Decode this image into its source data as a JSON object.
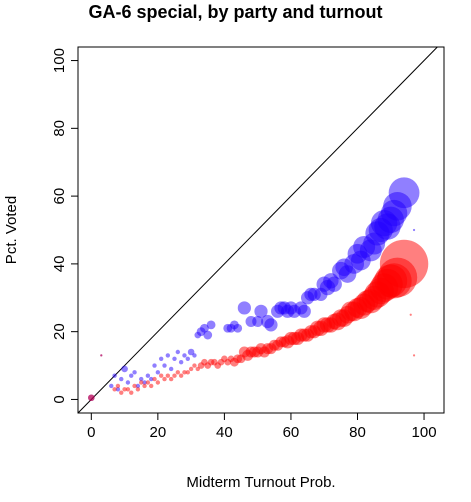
{
  "chart_data": {
    "type": "scatter",
    "title": "GA-6 special, by party and turnout",
    "xlabel": "Midterm Turnout Prob.",
    "ylabel": "Pct. Voted",
    "xlim": [
      -4,
      106
    ],
    "ylim": [
      -4,
      104
    ],
    "xticks": [
      "0",
      "20",
      "40",
      "60",
      "80",
      "100"
    ],
    "yticks": [
      "0",
      "20",
      "40",
      "60",
      "80",
      "100"
    ],
    "reference_line": "y = x",
    "grid": false,
    "legend": "none",
    "series": [
      {
        "color": "#2200ff",
        "opacity": 0.5,
        "points": [
          {
            "x": 0,
            "y": 0.5,
            "s": 1.5
          },
          {
            "x": 3,
            "y": 13,
            "s": 0.5
          },
          {
            "x": 6,
            "y": 4,
            "s": 1
          },
          {
            "x": 7,
            "y": 7,
            "s": 1
          },
          {
            "x": 8,
            "y": 3,
            "s": 1
          },
          {
            "x": 9,
            "y": 6,
            "s": 1
          },
          {
            "x": 10,
            "y": 9,
            "s": 1.5
          },
          {
            "x": 11,
            "y": 5,
            "s": 1
          },
          {
            "x": 12,
            "y": 7,
            "s": 1
          },
          {
            "x": 13,
            "y": 8,
            "s": 1
          },
          {
            "x": 14,
            "y": 4,
            "s": 1
          },
          {
            "x": 15,
            "y": 6,
            "s": 1
          },
          {
            "x": 16,
            "y": 5,
            "s": 1
          },
          {
            "x": 17,
            "y": 7,
            "s": 1
          },
          {
            "x": 18,
            "y": 6,
            "s": 1
          },
          {
            "x": 19,
            "y": 10,
            "s": 1
          },
          {
            "x": 20,
            "y": 8,
            "s": 1
          },
          {
            "x": 21,
            "y": 12,
            "s": 1
          },
          {
            "x": 22,
            "y": 10,
            "s": 1
          },
          {
            "x": 23,
            "y": 13,
            "s": 1
          },
          {
            "x": 24,
            "y": 9,
            "s": 1
          },
          {
            "x": 25,
            "y": 12,
            "s": 1
          },
          {
            "x": 26,
            "y": 14,
            "s": 1
          },
          {
            "x": 27,
            "y": 11,
            "s": 1
          },
          {
            "x": 28,
            "y": 13,
            "s": 1
          },
          {
            "x": 29,
            "y": 12,
            "s": 1
          },
          {
            "x": 30,
            "y": 14,
            "s": 1.5
          },
          {
            "x": 31,
            "y": 13,
            "s": 1
          },
          {
            "x": 32,
            "y": 19,
            "s": 1.5
          },
          {
            "x": 33,
            "y": 20,
            "s": 2
          },
          {
            "x": 34,
            "y": 21,
            "s": 2
          },
          {
            "x": 35,
            "y": 19,
            "s": 2
          },
          {
            "x": 36,
            "y": 22,
            "s": 2
          },
          {
            "x": 41,
            "y": 21,
            "s": 2
          },
          {
            "x": 42,
            "y": 21,
            "s": 2
          },
          {
            "x": 43,
            "y": 22,
            "s": 2
          },
          {
            "x": 44,
            "y": 21,
            "s": 2
          },
          {
            "x": 46,
            "y": 27,
            "s": 3
          },
          {
            "x": 48,
            "y": 23,
            "s": 2.5
          },
          {
            "x": 50,
            "y": 23,
            "s": 2.5
          },
          {
            "x": 51,
            "y": 26,
            "s": 3
          },
          {
            "x": 53,
            "y": 23,
            "s": 3
          },
          {
            "x": 54,
            "y": 22,
            "s": 3
          },
          {
            "x": 56,
            "y": 26,
            "s": 3
          },
          {
            "x": 57,
            "y": 27,
            "s": 3
          },
          {
            "x": 58,
            "y": 27,
            "s": 3
          },
          {
            "x": 59,
            "y": 26,
            "s": 3
          },
          {
            "x": 60,
            "y": 27,
            "s": 3
          },
          {
            "x": 61,
            "y": 26,
            "s": 3
          },
          {
            "x": 63,
            "y": 27,
            "s": 3
          },
          {
            "x": 64,
            "y": 26,
            "s": 3
          },
          {
            "x": 65,
            "y": 30,
            "s": 3
          },
          {
            "x": 66,
            "y": 31,
            "s": 3
          },
          {
            "x": 67,
            "y": 31,
            "s": 3
          },
          {
            "x": 69,
            "y": 31,
            "s": 3
          },
          {
            "x": 70,
            "y": 34,
            "s": 3.5
          },
          {
            "x": 71,
            "y": 33,
            "s": 3.5
          },
          {
            "x": 72,
            "y": 35,
            "s": 3.5
          },
          {
            "x": 73,
            "y": 34,
            "s": 3.5
          },
          {
            "x": 75,
            "y": 38,
            "s": 4
          },
          {
            "x": 76,
            "y": 39,
            "s": 4
          },
          {
            "x": 77,
            "y": 37,
            "s": 4
          },
          {
            "x": 79,
            "y": 40,
            "s": 4.5
          },
          {
            "x": 80,
            "y": 43,
            "s": 4.5
          },
          {
            "x": 81,
            "y": 41,
            "s": 4.5
          },
          {
            "x": 82,
            "y": 45,
            "s": 5
          },
          {
            "x": 84,
            "y": 44,
            "s": 5
          },
          {
            "x": 85,
            "y": 46,
            "s": 5
          },
          {
            "x": 86,
            "y": 49,
            "s": 5.5
          },
          {
            "x": 87,
            "y": 50,
            "s": 5.5
          },
          {
            "x": 88,
            "y": 52,
            "s": 6
          },
          {
            "x": 89,
            "y": 51,
            "s": 6
          },
          {
            "x": 90,
            "y": 53,
            "s": 6
          },
          {
            "x": 91,
            "y": 55,
            "s": 6
          },
          {
            "x": 92,
            "y": 57,
            "s": 6.5
          },
          {
            "x": 94,
            "y": 61,
            "s": 7
          },
          {
            "x": 97,
            "y": 50,
            "s": 0.5
          }
        ]
      },
      {
        "color": "#ff0000",
        "opacity": 0.5,
        "points": [
          {
            "x": 0,
            "y": 0.5,
            "s": 1.5
          },
          {
            "x": 3,
            "y": 13,
            "s": 0.5
          },
          {
            "x": 7,
            "y": 3,
            "s": 1
          },
          {
            "x": 8,
            "y": 4,
            "s": 1
          },
          {
            "x": 9,
            "y": 2,
            "s": 1
          },
          {
            "x": 10,
            "y": 3,
            "s": 1
          },
          {
            "x": 11,
            "y": 3,
            "s": 1
          },
          {
            "x": 12,
            "y": 2,
            "s": 1
          },
          {
            "x": 13,
            "y": 4,
            "s": 1
          },
          {
            "x": 14,
            "y": 3,
            "s": 1
          },
          {
            "x": 15,
            "y": 5,
            "s": 1
          },
          {
            "x": 16,
            "y": 4,
            "s": 1
          },
          {
            "x": 17,
            "y": 5,
            "s": 1
          },
          {
            "x": 18,
            "y": 4,
            "s": 1
          },
          {
            "x": 19,
            "y": 6,
            "s": 1
          },
          {
            "x": 20,
            "y": 5,
            "s": 1
          },
          {
            "x": 21,
            "y": 7,
            "s": 1
          },
          {
            "x": 22,
            "y": 6,
            "s": 1
          },
          {
            "x": 23,
            "y": 7,
            "s": 1
          },
          {
            "x": 24,
            "y": 6,
            "s": 1
          },
          {
            "x": 25,
            "y": 7,
            "s": 1
          },
          {
            "x": 26,
            "y": 8,
            "s": 1
          },
          {
            "x": 27,
            "y": 7,
            "s": 1
          },
          {
            "x": 28,
            "y": 8,
            "s": 1
          },
          {
            "x": 29,
            "y": 8,
            "s": 1
          },
          {
            "x": 30,
            "y": 9,
            "s": 1
          },
          {
            "x": 31,
            "y": 10,
            "s": 1
          },
          {
            "x": 32,
            "y": 9,
            "s": 1
          },
          {
            "x": 33,
            "y": 10,
            "s": 1.5
          },
          {
            "x": 34,
            "y": 11,
            "s": 1.5
          },
          {
            "x": 35,
            "y": 10,
            "s": 1.5
          },
          {
            "x": 36,
            "y": 11,
            "s": 1.5
          },
          {
            "x": 37,
            "y": 11,
            "s": 1.5
          },
          {
            "x": 38,
            "y": 10,
            "s": 1.5
          },
          {
            "x": 39,
            "y": 11,
            "s": 1.5
          },
          {
            "x": 40,
            "y": 12,
            "s": 1.5
          },
          {
            "x": 41,
            "y": 11,
            "s": 1.5
          },
          {
            "x": 42,
            "y": 12,
            "s": 1.5
          },
          {
            "x": 43,
            "y": 11,
            "s": 2
          },
          {
            "x": 44,
            "y": 12,
            "s": 2
          },
          {
            "x": 45,
            "y": 12,
            "s": 2
          },
          {
            "x": 46,
            "y": 14,
            "s": 2.5
          },
          {
            "x": 47,
            "y": 13,
            "s": 2.5
          },
          {
            "x": 48,
            "y": 14,
            "s": 2.5
          },
          {
            "x": 49,
            "y": 14,
            "s": 2.5
          },
          {
            "x": 50,
            "y": 14,
            "s": 2.5
          },
          {
            "x": 51,
            "y": 15,
            "s": 2.5
          },
          {
            "x": 52,
            "y": 14,
            "s": 2.5
          },
          {
            "x": 53,
            "y": 15,
            "s": 2.5
          },
          {
            "x": 54,
            "y": 15,
            "s": 2.5
          },
          {
            "x": 55,
            "y": 16,
            "s": 2.5
          },
          {
            "x": 56,
            "y": 16,
            "s": 2.5
          },
          {
            "x": 57,
            "y": 17,
            "s": 2.5
          },
          {
            "x": 58,
            "y": 17,
            "s": 2.5
          },
          {
            "x": 59,
            "y": 17,
            "s": 3
          },
          {
            "x": 60,
            "y": 18,
            "s": 3
          },
          {
            "x": 61,
            "y": 18,
            "s": 3
          },
          {
            "x": 62,
            "y": 18,
            "s": 3
          },
          {
            "x": 63,
            "y": 19,
            "s": 3
          },
          {
            "x": 64,
            "y": 19,
            "s": 3
          },
          {
            "x": 65,
            "y": 19,
            "s": 3
          },
          {
            "x": 66,
            "y": 20,
            "s": 3
          },
          {
            "x": 67,
            "y": 20,
            "s": 3
          },
          {
            "x": 68,
            "y": 21,
            "s": 3.5
          },
          {
            "x": 69,
            "y": 21,
            "s": 3.5
          },
          {
            "x": 70,
            "y": 22,
            "s": 3.5
          },
          {
            "x": 71,
            "y": 22,
            "s": 3.5
          },
          {
            "x": 72,
            "y": 22,
            "s": 3.5
          },
          {
            "x": 73,
            "y": 23,
            "s": 3.5
          },
          {
            "x": 74,
            "y": 23,
            "s": 4
          },
          {
            "x": 75,
            "y": 24,
            "s": 4
          },
          {
            "x": 76,
            "y": 24,
            "s": 4
          },
          {
            "x": 77,
            "y": 25,
            "s": 4
          },
          {
            "x": 78,
            "y": 26,
            "s": 4.5
          },
          {
            "x": 79,
            "y": 26,
            "s": 4.5
          },
          {
            "x": 80,
            "y": 27,
            "s": 4.5
          },
          {
            "x": 81,
            "y": 27,
            "s": 5
          },
          {
            "x": 82,
            "y": 28,
            "s": 5
          },
          {
            "x": 83,
            "y": 29,
            "s": 5
          },
          {
            "x": 84,
            "y": 29,
            "s": 5.5
          },
          {
            "x": 85,
            "y": 30,
            "s": 5.5
          },
          {
            "x": 86,
            "y": 31,
            "s": 6
          },
          {
            "x": 87,
            "y": 32,
            "s": 6
          },
          {
            "x": 88,
            "y": 33,
            "s": 6.5
          },
          {
            "x": 89,
            "y": 34,
            "s": 7
          },
          {
            "x": 90,
            "y": 35,
            "s": 7.5
          },
          {
            "x": 91,
            "y": 35,
            "s": 8
          },
          {
            "x": 92,
            "y": 36,
            "s": 9
          },
          {
            "x": 94,
            "y": 40,
            "s": 11
          },
          {
            "x": 96,
            "y": 25,
            "s": 0.5
          },
          {
            "x": 97,
            "y": 13,
            "s": 0.5
          }
        ]
      }
    ]
  }
}
